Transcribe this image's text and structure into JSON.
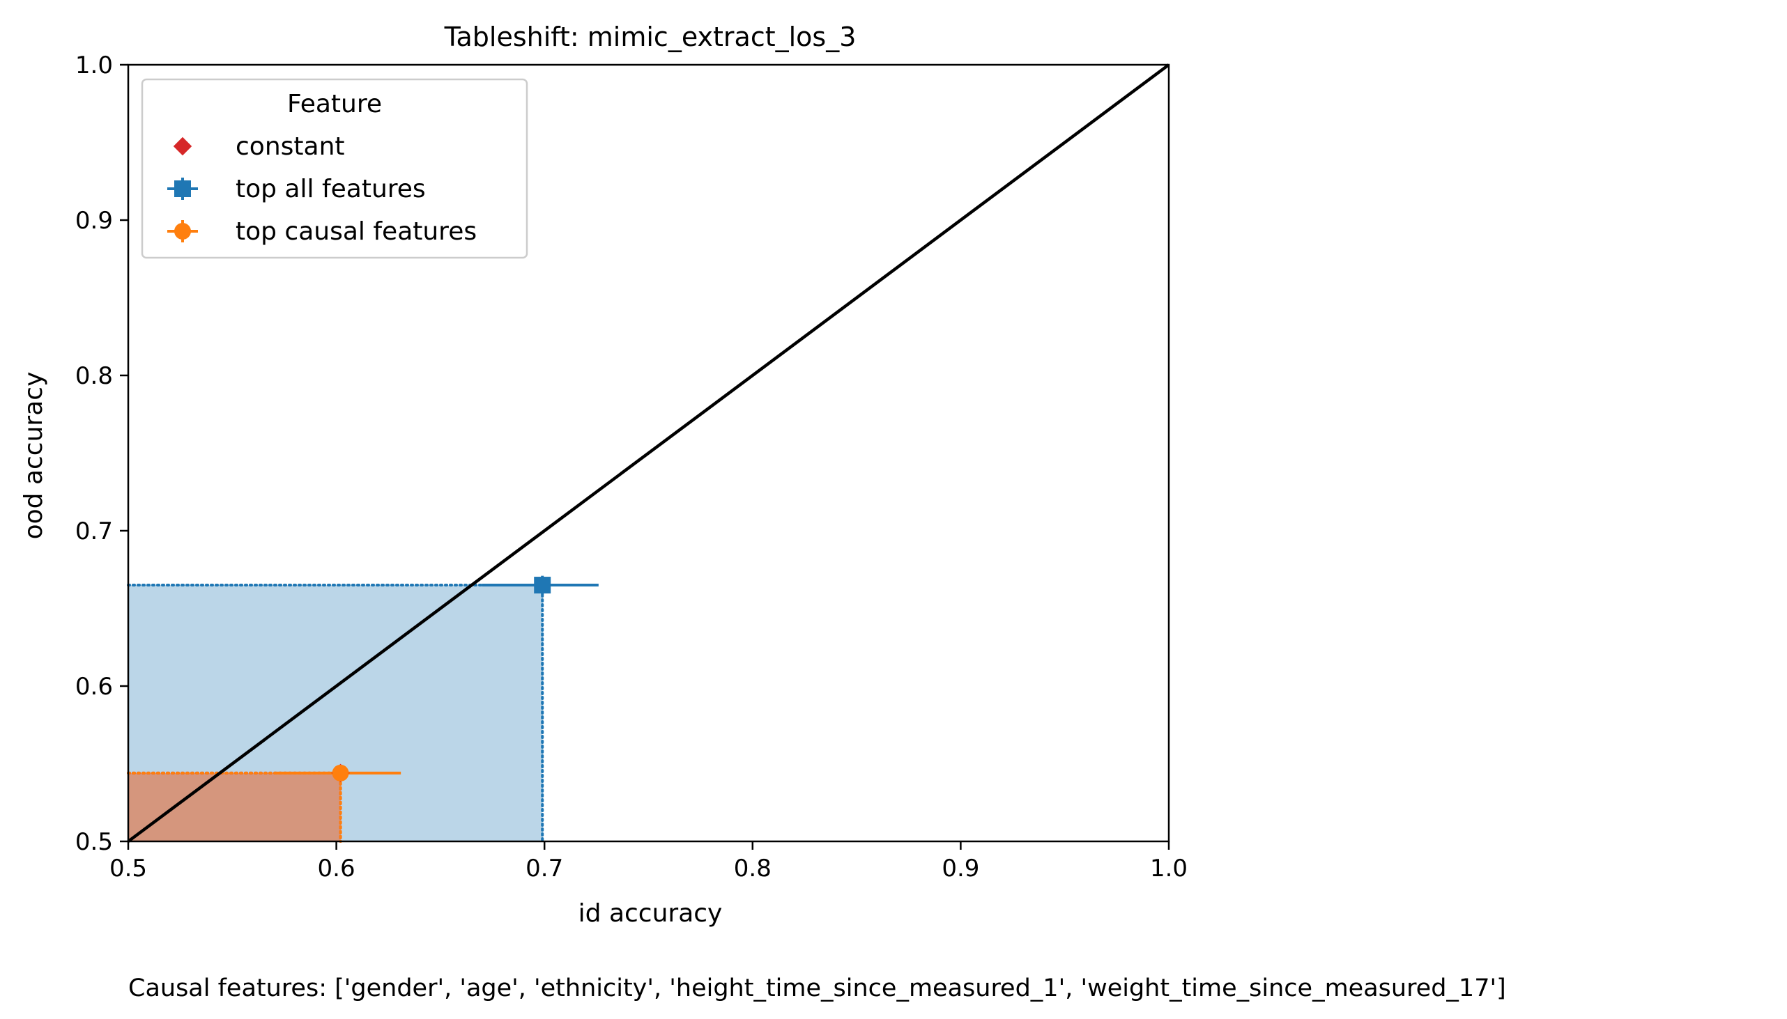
{
  "chart_data": {
    "type": "scatter",
    "title": "Tableshift: mimic_extract_los_3",
    "xlabel": "id accuracy",
    "ylabel": "ood accuracy",
    "xlim": [
      0.5,
      1.0
    ],
    "ylim": [
      0.5,
      1.0
    ],
    "xticks": [
      "0.5",
      "0.6",
      "0.7",
      "0.8",
      "0.9",
      "1.0"
    ],
    "yticks": [
      "0.5",
      "0.6",
      "0.7",
      "0.8",
      "0.9",
      "1.0"
    ],
    "grid": false,
    "diagonal": {
      "from": [
        0.5,
        0.5
      ],
      "to": [
        1.0,
        1.0
      ],
      "color": "#000000"
    },
    "legend": {
      "title": "Feature",
      "placement": "top-left",
      "entries": [
        {
          "label": "constant",
          "marker": "diamond",
          "color": "#d62728"
        },
        {
          "label": "top all features",
          "marker": "square",
          "color": "#1f77b4"
        },
        {
          "label": "top causal features",
          "marker": "circle",
          "color": "#ff7f0e"
        }
      ]
    },
    "series": [
      {
        "name": "constant",
        "marker": "diamond",
        "color": "#d62728",
        "x": 0.602,
        "y": 0.544,
        "xerr": [
          0.0,
          0.0
        ],
        "yerr": [
          0.0,
          0.0
        ],
        "shade_color": "#d62728",
        "shade_opacity": 0.3
      },
      {
        "name": "top all features",
        "marker": "square",
        "color": "#1f77b4",
        "x": 0.699,
        "y": 0.665,
        "xerr": [
          0.029,
          0.027
        ],
        "yerr": [
          0.006,
          0.006
        ],
        "shade_color": "#1f77b4",
        "shade_opacity": 0.3
      },
      {
        "name": "top causal features",
        "marker": "circle",
        "color": "#ff7f0e",
        "x": 0.602,
        "y": 0.544,
        "xerr": [
          0.032,
          0.029
        ],
        "yerr": [
          0.005,
          0.005
        ],
        "shade_color": "#ff7f0e",
        "shade_opacity": 0.3
      }
    ],
    "caption": "Causal features: ['gender', 'age', 'ethnicity', 'height_time_since_measured_1', 'weight_time_since_measured_17']"
  }
}
